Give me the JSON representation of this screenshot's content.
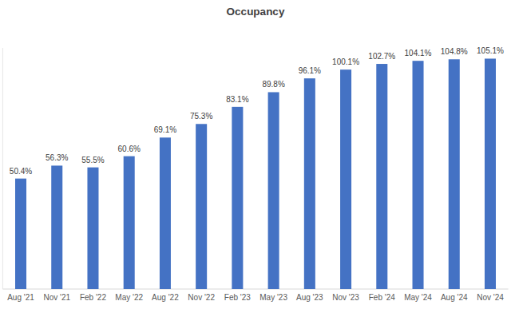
{
  "chart_data": {
    "type": "bar",
    "title": "Occupancy",
    "categories": [
      "Aug '21",
      "Nov '21",
      "Feb '22",
      "May '22",
      "Aug '22",
      "Nov '22",
      "Feb '23",
      "May '23",
      "Aug '23",
      "Nov '23",
      "Feb '24",
      "May '24",
      "Aug '24",
      "Nov '24"
    ],
    "values": [
      50.4,
      56.3,
      55.5,
      60.6,
      69.1,
      75.3,
      83.1,
      89.8,
      96.1,
      100.1,
      102.7,
      104.1,
      104.8,
      105.1
    ],
    "value_labels": [
      "50.4%",
      "56.3%",
      "55.5%",
      "60.6%",
      "69.1%",
      "75.3%",
      "83.1%",
      "89.8%",
      "96.1%",
      "100.1%",
      "102.7%",
      "104.1%",
      "104.8%",
      "105.1%"
    ],
    "color": "#4472c4",
    "ylim": [
      0,
      110
    ],
    "grid": false,
    "data_labels": true,
    "tick_labels": "x"
  }
}
